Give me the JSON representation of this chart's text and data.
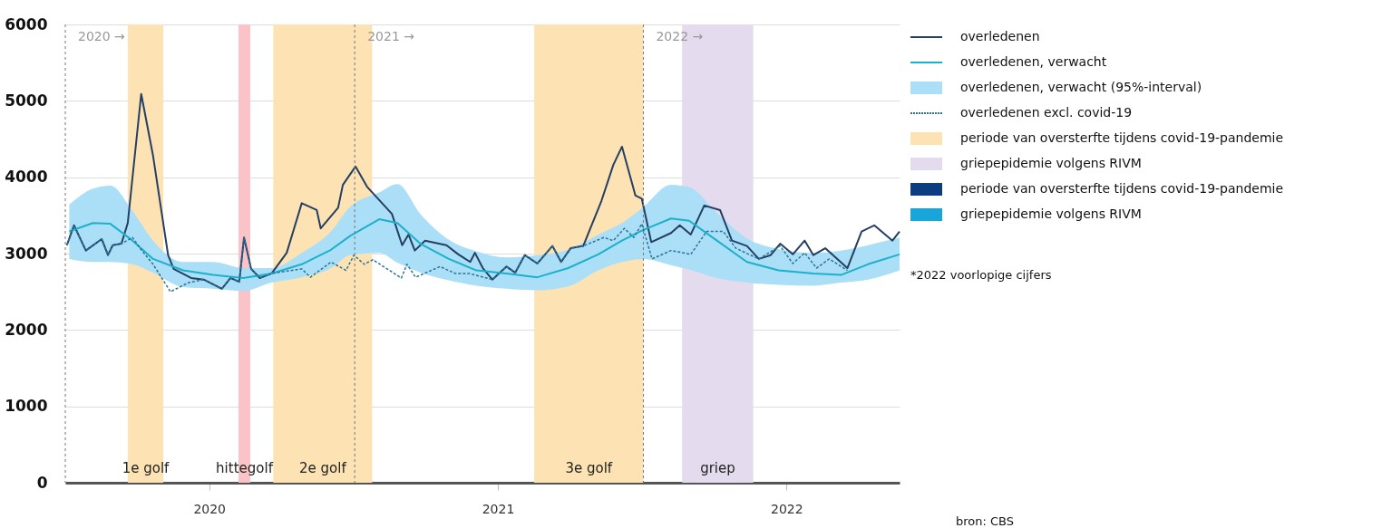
{
  "chart_data": {
    "type": "line",
    "xlim": [
      "2020-01-01",
      "2022-11-21"
    ],
    "xticks": [
      {
        "value": "2020-07-01",
        "label": "2020"
      },
      {
        "value": "2021-07-01",
        "label": "2021"
      },
      {
        "value": "2022-07-01",
        "label": "2022"
      }
    ],
    "ylim": [
      0,
      6000
    ],
    "yticks": [
      0,
      1000,
      2000,
      3000,
      4000,
      5000,
      6000
    ],
    "grid": "y",
    "legend": "right",
    "series": [
      {
        "name": "overledenen",
        "color": "#243f63",
        "x": [
          "2020-01-03",
          "2020-01-12",
          "2020-01-27",
          "2020-02-16",
          "2020-02-24",
          "2020-03-01",
          "2020-03-12",
          "2020-03-20",
          "2020-04-06",
          "2020-04-21",
          "2020-05-10",
          "2020-05-17",
          "2020-06-08",
          "2020-06-24",
          "2020-07-17",
          "2020-07-28",
          "2020-08-08",
          "2020-08-14",
          "2020-08-23",
          "2020-09-03",
          "2020-09-18",
          "2020-10-07",
          "2020-10-26",
          "2020-11-14",
          "2020-11-19",
          "2020-12-11",
          "2020-12-17",
          "2021-01-02",
          "2021-01-17",
          "2021-02-17",
          "2021-03-02",
          "2021-03-10",
          "2021-03-18",
          "2021-03-31",
          "2021-04-27",
          "2021-05-12",
          "2021-05-27",
          "2021-06-02",
          "2021-06-12",
          "2021-06-24",
          "2021-07-12",
          "2021-07-23",
          "2021-08-04",
          "2021-08-20",
          "2021-09-08",
          "2021-09-19",
          "2021-10-01",
          "2021-10-17",
          "2021-11-09",
          "2021-11-24",
          "2021-12-05",
          "2021-12-22",
          "2021-12-30",
          "2022-01-11",
          "2022-02-05",
          "2022-02-16",
          "2022-03-02",
          "2022-03-19",
          "2022-04-08",
          "2022-04-23",
          "2022-05-12",
          "2022-05-27",
          "2022-06-11",
          "2022-06-23",
          "2022-07-09",
          "2022-07-24",
          "2022-08-04",
          "2022-08-19",
          "2022-09-16",
          "2022-10-04",
          "2022-10-20",
          "2022-11-12",
          "2022-11-21"
        ],
        "values": [
          3110,
          3370,
          3040,
          3190,
          2980,
          3110,
          3130,
          3400,
          5090,
          4280,
          2980,
          2800,
          2680,
          2660,
          2540,
          2680,
          2630,
          3210,
          2800,
          2680,
          2740,
          3010,
          3660,
          3570,
          3330,
          3600,
          3900,
          4140,
          3870,
          3520,
          3110,
          3250,
          3040,
          3170,
          3110,
          2990,
          2890,
          3010,
          2810,
          2660,
          2830,
          2750,
          2980,
          2870,
          3100,
          2890,
          3070,
          3100,
          3690,
          4160,
          4400,
          3760,
          3720,
          3150,
          3270,
          3370,
          3250,
          3630,
          3570,
          3170,
          3100,
          2930,
          2980,
          3130,
          2990,
          3170,
          2980,
          3070,
          2810,
          3290,
          3370,
          3170,
          3290
        ]
      },
      {
        "name": "overledenen, verwacht",
        "color": "#1cb0c9",
        "lower": [
          2930,
          2890,
          2890,
          2860,
          2750,
          2560,
          2540,
          2510,
          2620,
          2690,
          2810,
          2980,
          3010,
          2880,
          2750,
          2650,
          2580,
          2540,
          2520,
          2570,
          2780,
          2890,
          2930,
          2850,
          2790,
          2680,
          2620,
          2590,
          2580,
          2620,
          2660,
          2780
        ],
        "upper": [
          3640,
          3850,
          3890,
          3560,
          3170,
          2890,
          2890,
          2810,
          2810,
          3010,
          3290,
          3610,
          3800,
          3910,
          3520,
          3180,
          3030,
          2950,
          2980,
          3050,
          3250,
          3400,
          3610,
          3900,
          3870,
          3530,
          3200,
          3060,
          3010,
          3040,
          3110,
          3210
        ],
        "x": [
          "2020-01-06",
          "2020-02-05",
          "2020-02-27",
          "2020-03-26",
          "2020-04-21",
          "2020-05-29",
          "2020-07-06",
          "2020-08-13",
          "2020-09-18",
          "2020-10-26",
          "2020-12-02",
          "2020-12-26",
          "2021-02-01",
          "2021-02-24",
          "2021-03-25",
          "2021-04-30",
          "2021-06-04",
          "2021-07-12",
          "2021-08-20",
          "2021-09-28",
          "2021-11-05",
          "2021-12-05",
          "2022-01-01",
          "2022-02-05",
          "2022-02-28",
          "2022-04-04",
          "2022-05-12",
          "2022-06-21",
          "2022-08-04",
          "2022-09-08",
          "2022-10-12",
          "2022-11-21"
        ],
        "values": [
          3290,
          3400,
          3390,
          3170,
          2930,
          2780,
          2720,
          2680,
          2740,
          2860,
          3050,
          3230,
          3450,
          3400,
          3130,
          2930,
          2780,
          2740,
          2690,
          2810,
          2990,
          3170,
          3310,
          3460,
          3430,
          3170,
          2890,
          2780,
          2740,
          2720,
          2860,
          2990
        ]
      },
      {
        "name": "overledenen, verwacht (95%-interval)",
        "type": "area",
        "color": "#aadff7"
      },
      {
        "name": "overledenen excl. covid-19",
        "line_style": "dashed",
        "color": "#2c7396",
        "x": [
          "2020-01-03",
          "2020-01-12",
          "2020-01-27",
          "2020-02-16",
          "2020-02-24",
          "2020-03-01",
          "2020-03-12",
          "2020-03-26",
          "2020-04-06",
          "2020-04-21",
          "2020-05-13",
          "2020-06-05",
          "2020-06-24",
          "2020-07-17",
          "2020-07-28",
          "2020-08-08",
          "2020-08-14",
          "2020-08-23",
          "2020-09-03",
          "2020-09-18",
          "2020-10-26",
          "2020-11-06",
          "2020-12-02",
          "2020-12-21",
          "2020-12-31",
          "2021-01-13",
          "2021-01-24",
          "2021-03-01",
          "2021-03-08",
          "2021-03-19",
          "2021-04-19",
          "2021-05-08",
          "2021-05-26",
          "2021-06-24",
          "2021-07-12",
          "2021-07-23",
          "2021-08-04",
          "2021-08-20",
          "2021-09-08",
          "2021-09-19",
          "2021-10-01",
          "2021-10-17",
          "2021-11-12",
          "2021-11-24",
          "2021-12-08",
          "2021-12-20",
          "2021-12-30",
          "2022-01-12",
          "2022-02-05",
          "2022-03-02",
          "2022-03-22",
          "2022-04-12",
          "2022-04-28",
          "2022-05-27",
          "2022-06-23",
          "2022-07-09",
          "2022-07-24",
          "2022-08-08",
          "2022-08-24",
          "2022-09-16"
        ],
        "values": [
          3110,
          3370,
          3040,
          3190,
          2980,
          3110,
          3130,
          3210,
          3050,
          2860,
          2500,
          2620,
          2660,
          2540,
          2680,
          2630,
          3210,
          2800,
          2680,
          2740,
          2800,
          2690,
          2890,
          2780,
          2980,
          2860,
          2920,
          2680,
          2860,
          2690,
          2830,
          2740,
          2740,
          2660,
          2830,
          2750,
          2980,
          2870,
          3100,
          2890,
          3070,
          3100,
          3210,
          3170,
          3330,
          3210,
          3390,
          2930,
          3040,
          2990,
          3290,
          3290,
          3070,
          2930,
          3100,
          2870,
          3010,
          2810,
          2930,
          2780
        ]
      },
      {
        "name": "periode van oversterfte tijdens covid-19-pandemie",
        "type": "area",
        "color": "#fde3b3"
      },
      {
        "name": "griepepidemie volgens RIVM",
        "type": "area",
        "color": "#e4dbef"
      },
      {
        "name": "periode van oversterfte tijdens covid-19-pandemie",
        "type": "area",
        "color": "#0b3d80"
      },
      {
        "name": "griepepidemie volgens RIVM",
        "type": "area",
        "color": "#17a5da"
      }
    ],
    "bands": [
      {
        "axis": "x",
        "from": "2020-03-20",
        "to": "2020-05-04",
        "label": "1e golf",
        "color": "#fde3b3"
      },
      {
        "axis": "x",
        "from": "2020-08-07",
        "to": "2020-08-22",
        "label": "hittegolf",
        "color": "#f9c3c7"
      },
      {
        "axis": "x",
        "from": "2020-09-20",
        "to": "2021-01-23",
        "label": "2e golf",
        "color": "#fde3b3"
      },
      {
        "axis": "x",
        "from": "2021-08-16",
        "to": "2022-01-01",
        "label": "3e golf",
        "color": "#fde3b3"
      },
      {
        "axis": "x",
        "from": "2022-02-19",
        "to": "2022-05-20",
        "label": "griep",
        "color": "#e4dbef"
      }
    ],
    "ref_lines": [
      {
        "axis": "x",
        "value": "2020-01-01",
        "label": "2020 →",
        "line_style": "dashed"
      },
      {
        "axis": "x",
        "value": "2021-01-01",
        "label": "2021 →",
        "line_style": "dashed"
      },
      {
        "axis": "x",
        "value": "2022-01-01",
        "label": "2022 →",
        "line_style": "dashed"
      }
    ],
    "annotations": [
      "*2022 voorlopige cijfers",
      "bron: CBS"
    ]
  }
}
